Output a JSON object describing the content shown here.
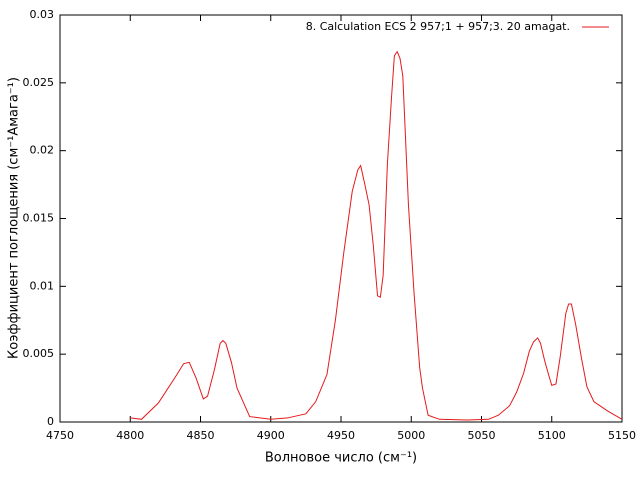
{
  "chart_data": {
    "type": "line",
    "xlabel": "Волновое число (см⁻¹)",
    "ylabel": "Коэффициент поглощения (см⁻¹Амага⁻¹)",
    "xlim": [
      4750,
      5150
    ],
    "xticks": [
      4750,
      4800,
      4850,
      4900,
      4950,
      5000,
      5050,
      5100,
      5150
    ],
    "ylim": [
      0,
      0.03
    ],
    "yticks": [
      0,
      0.005,
      0.01,
      0.015,
      0.02,
      0.025,
      0.03
    ],
    "legend_position": "top-right",
    "series": [
      {
        "name": "8. Calculation ECS  2  957;1 +   957;3. 20 amagat.",
        "color": "#e41a1c",
        "x": [
          4800,
          4808,
          4820,
          4832,
          4838,
          4842,
          4847,
          4852,
          4855,
          4860,
          4864,
          4866,
          4868,
          4872,
          4876,
          4885,
          4900,
          4912,
          4925,
          4932,
          4940,
          4946,
          4952,
          4958,
          4962,
          4964,
          4967,
          4970,
          4973,
          4976,
          4978,
          4980,
          4983,
          4986,
          4988,
          4990,
          4992,
          4994,
          4998,
          5002,
          5006,
          5008,
          5012,
          5020,
          5040,
          5055,
          5062,
          5070,
          5075,
          5080,
          5084,
          5087,
          5090,
          5092,
          5095,
          5098,
          5100,
          5103,
          5106,
          5110,
          5112,
          5114,
          5117,
          5121,
          5125,
          5130,
          5140,
          5150
        ],
        "values": [
          0.0003,
          0.0002,
          0.0014,
          0.0033,
          0.0043,
          0.0044,
          0.0032,
          0.0017,
          0.0019,
          0.0039,
          0.0058,
          0.006,
          0.0058,
          0.0044,
          0.0025,
          0.0004,
          0.0002,
          0.0003,
          0.0006,
          0.0015,
          0.0035,
          0.0075,
          0.0125,
          0.017,
          0.0186,
          0.0189,
          0.0175,
          0.016,
          0.013,
          0.0093,
          0.0092,
          0.0108,
          0.019,
          0.024,
          0.027,
          0.0273,
          0.0268,
          0.0255,
          0.016,
          0.0095,
          0.004,
          0.0025,
          0.0005,
          0.0002,
          0.00015,
          0.0002,
          0.0005,
          0.0012,
          0.0022,
          0.0036,
          0.0052,
          0.0059,
          0.0062,
          0.0058,
          0.0045,
          0.0034,
          0.0027,
          0.0028,
          0.0048,
          0.008,
          0.0087,
          0.0087,
          0.0072,
          0.0048,
          0.0026,
          0.0015,
          0.0008,
          0.0002
        ]
      }
    ]
  }
}
